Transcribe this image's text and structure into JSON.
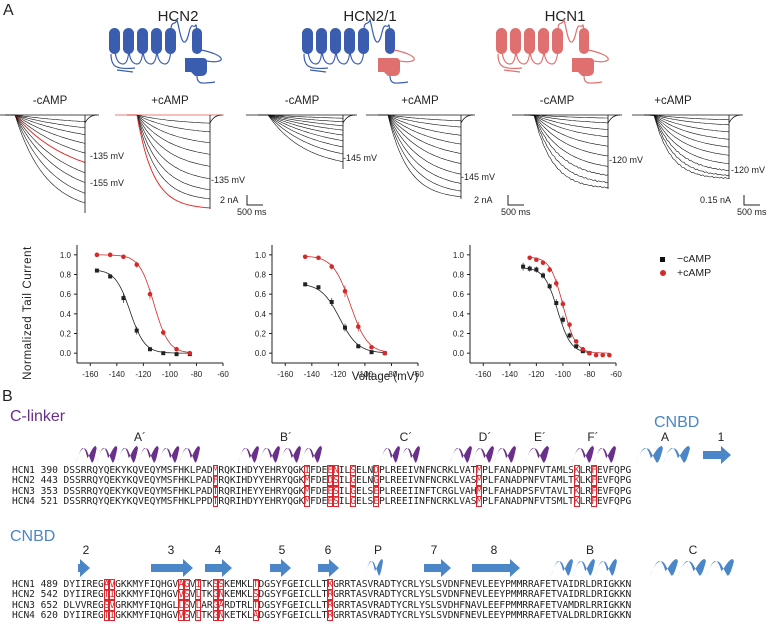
{
  "panels": {
    "a": "A",
    "b": "B"
  },
  "channels": [
    {
      "name": "HCN2",
      "tm_color": "#3a5db0",
      "cnbd_color": "#3a5db0"
    },
    {
      "name": "HCN2/1",
      "tm_color": "#3a5db0",
      "cnbd_color": "#e07070"
    },
    {
      "name": "HCN1",
      "tm_color": "#e07070",
      "cnbd_color": "#e07070"
    }
  ],
  "traces": {
    "conditions": [
      "-cAMP",
      "+cAMP",
      "-cAMP",
      "+cAMP",
      "-cAMP",
      "+cAMP"
    ],
    "voltage_labels": {
      "hcn2_minus_a": "-135 mV",
      "hcn2_minus_b": "-155 mV",
      "hcn2_plus": "-135 mV",
      "hcn21_minus": "-145 mV",
      "hcn21_plus": "-145 mV",
      "hcn1_minus": "-120 mV",
      "hcn1_plus": "-120 mV"
    },
    "scale_bars": [
      {
        "current": "2 nA",
        "time": "500 ms"
      },
      {
        "current": "2 nA",
        "time": "500 ms"
      },
      {
        "current": "0.15 nA",
        "time": "500 ms"
      }
    ]
  },
  "chart_data": [
    {
      "type": "scatter",
      "title": "HCN2",
      "xlabel": "Voltage (mV)",
      "ylabel": "Normalized Tail Current",
      "xlim": [
        -170,
        -60
      ],
      "ylim": [
        -0.1,
        1.1
      ],
      "xticks": [
        -160,
        -140,
        -120,
        -100,
        -80,
        -60
      ],
      "yticks": [
        0.0,
        0.2,
        0.4,
        0.6,
        0.8,
        1.0
      ],
      "series": [
        {
          "name": "-cAMP",
          "color": "#222222",
          "marker": "square",
          "x": [
            -155,
            -145,
            -135,
            -125,
            -115,
            -105,
            -95,
            -85
          ],
          "y": [
            0.84,
            0.78,
            0.56,
            0.23,
            0.04,
            0.0,
            -0.01,
            -0.01
          ],
          "err": [
            0.02,
            0.02,
            0.05,
            0.04,
            0.01,
            0.01,
            0.01,
            0.01
          ],
          "fit_v_half": -130,
          "fit_k": 5.5,
          "fit_max": 0.85
        },
        {
          "name": "+cAMP",
          "color": "#d42a2a",
          "marker": "circle",
          "x": [
            -155,
            -145,
            -135,
            -125,
            -115,
            -105,
            -95,
            -85
          ],
          "y": [
            1.0,
            1.0,
            0.98,
            0.9,
            0.6,
            0.21,
            0.04,
            0.0
          ],
          "err": [
            0.01,
            0.01,
            0.01,
            0.03,
            0.05,
            0.03,
            0.01,
            0.01
          ],
          "fit_v_half": -112,
          "fit_k": 5.5,
          "fit_max": 1.0
        }
      ]
    },
    {
      "type": "scatter",
      "title": "HCN2/1",
      "xlabel": "Voltage (mV)",
      "ylabel": "",
      "xlim": [
        -170,
        -60
      ],
      "ylim": [
        -0.1,
        1.1
      ],
      "xticks": [
        -160,
        -140,
        -120,
        -100,
        -80,
        -60
      ],
      "yticks": [
        0.0,
        0.2,
        0.4,
        0.6,
        0.8,
        1.0
      ],
      "series": [
        {
          "name": "-cAMP",
          "color": "#222222",
          "marker": "square",
          "x": [
            -145,
            -135,
            -125,
            -115,
            -105,
            -95,
            -85
          ],
          "y": [
            0.7,
            0.67,
            0.52,
            0.26,
            0.07,
            0.01,
            0.0
          ],
          "err": [
            0.02,
            0.02,
            0.04,
            0.04,
            0.02,
            0.01,
            0.01
          ],
          "fit_v_half": -119,
          "fit_k": 7.0,
          "fit_max": 0.71
        },
        {
          "name": "+cAMP",
          "color": "#d42a2a",
          "marker": "circle",
          "x": [
            -145,
            -135,
            -125,
            -115,
            -105,
            -95,
            -85
          ],
          "y": [
            0.98,
            0.97,
            0.88,
            0.63,
            0.27,
            0.06,
            0.0
          ],
          "err": [
            0.01,
            0.01,
            0.03,
            0.06,
            0.05,
            0.02,
            0.01
          ],
          "fit_v_half": -111,
          "fit_k": 6.5,
          "fit_max": 0.99
        }
      ]
    },
    {
      "type": "scatter",
      "title": "HCN1",
      "xlabel": "Voltage (mV)",
      "ylabel": "",
      "xlim": [
        -170,
        -60
      ],
      "ylim": [
        -0.1,
        1.1
      ],
      "xticks": [
        -160,
        -140,
        -120,
        -100,
        -80,
        -60
      ],
      "yticks": [
        0.0,
        0.2,
        0.4,
        0.6,
        0.8,
        1.0
      ],
      "legend": {
        "position": "right",
        "entries": [
          "−cAMP",
          "+cAMP"
        ]
      },
      "series": [
        {
          "name": "-cAMP",
          "color": "#222222",
          "marker": "square",
          "x": [
            -130,
            -125,
            -120,
            -115,
            -110,
            -105,
            -100,
            -95,
            -90,
            -85,
            -80
          ],
          "y": [
            0.88,
            0.86,
            0.85,
            0.79,
            0.68,
            0.51,
            0.34,
            0.18,
            0.07,
            0.02,
            0.0
          ],
          "err": [
            0.04,
            0.03,
            0.03,
            0.03,
            0.03,
            0.04,
            0.04,
            0.03,
            0.02,
            0.01,
            0.01
          ],
          "fit_v_half": -104,
          "fit_k": 5.0,
          "fit_max": 0.87
        },
        {
          "name": "+cAMP",
          "color": "#d42a2a",
          "marker": "circle",
          "x": [
            -125,
            -120,
            -115,
            -110,
            -105,
            -100,
            -95,
            -90,
            -85,
            -80,
            -75,
            -70,
            -65
          ],
          "y": [
            0.97,
            0.95,
            0.92,
            0.85,
            0.71,
            0.5,
            0.29,
            0.12,
            0.04,
            0.0,
            -0.02,
            -0.02,
            -0.02
          ],
          "err": [
            0.01,
            0.01,
            0.02,
            0.03,
            0.04,
            0.04,
            0.03,
            0.02,
            0.01,
            0.01,
            0.01,
            0.01,
            0.01
          ],
          "fit_v_half": -100,
          "fit_k": 4.8,
          "fit_max": 0.98
        }
      ]
    }
  ],
  "alignment": {
    "block1": {
      "section_label": "C-linker",
      "section_label2": "CNBD",
      "elements": [
        "A´",
        "B´",
        "C´",
        "D´",
        "E´",
        "F´",
        "A",
        "1"
      ],
      "rows": [
        {
          "name": "HCN1",
          "start": "390",
          "seq": "DSSRRQYQEKYKQVEQYMSFHKLPADMRQKIHDYYEHRYQGKIFDEENILSELNDPLREEIVNFNCRKLVATMPLFANADPNFVTAMLSKLRFEVFQPG"
        },
        {
          "name": "HCN2",
          "start": "443",
          "seq": "DSSRRQYQEKYKQVEQYMSFHKLPADFRQKIHDYYEHRYQGKMFDEDSILGELNGPLREEIVNFNCRKLVASMPLFANADPNFVTAMLTKLKFEVFQPG"
        },
        {
          "name": "HCN3",
          "start": "353",
          "seq": "DSSRRQYQEKYKQVEQYMSFHKLPADTRQRIHEYYEHRYQGKMFDEESILGELSEPLREEIINFTCRGLVAHMPLFAHADPSFVTAVLTKLRFEVFQPG"
        },
        {
          "name": "HCN4",
          "start": "521",
          "seq": "DSSRRQYQEKYKQVEQYMSFHKLPPDTRQRIHDYYEHRYQGKMFDEESILGELSEPLREEIINFNCRKLVASMPLFANADPNFVTSMLTKLRFEVFQPG"
        }
      ],
      "highlight_columns": [
        26,
        42,
        46,
        47,
        50,
        54,
        72,
        89,
        92
      ]
    },
    "block2": {
      "section_label": "CNBD",
      "elements": [
        "2",
        "3",
        "4",
        "5",
        "6",
        "P",
        "7",
        "8",
        "B",
        "C"
      ],
      "rows": [
        {
          "name": "HCN1",
          "start": "489",
          "seq": "DYIIREGAVGKKMYFIQHGVAGVITKSSKEMKLTDGSYFGEICLLTKGRRTASVRADTYCRLYSLSVDNFNEVLEEYPMMRRAFETVAIDRLDRIGKKN"
        },
        {
          "name": "HCN2",
          "start": "542",
          "seq": "DYIIREGTIGKKMYFIQHGVVSVLTKGNKEMKLSDGSYFGEICLLTRGRRTASVRADTYCRLYSLSVDNFNEVLEEYPMMRRAFETVAIDRLDRIGKKN"
        },
        {
          "name": "HCN3",
          "start": "652",
          "seq": "DLVVREGSVGRKMYFIQHGLLSVLARGARDTRLTDGSYFGEICLLTRGRRTASVRADTYCRLYSLSVDHFNAVLEEFPMMRRAFETVAMDRLRRIGKKN"
        },
        {
          "name": "HCN4",
          "start": "620",
          "seq": "DYIIREGTIGKKMYFIQHGVVSVLTKGNKETKLADGSYFGEICLLTRGRRTASVRADTYCRLYSLSVDNFNEVLEEYPMMRRAFETVALDRLDRIGKKN"
        }
      ],
      "highlight_columns": [
        7,
        8,
        20,
        21,
        23,
        26,
        27,
        33,
        46
      ]
    }
  },
  "colors": {
    "hcn2_blue": "#3a5db0",
    "hcn1_red": "#e07070",
    "clinker_purple": "#6a2f8a",
    "cnbd_blue": "#4a86c8",
    "highlight_red": "#e0242b",
    "camp_red": "#d42a2a"
  }
}
